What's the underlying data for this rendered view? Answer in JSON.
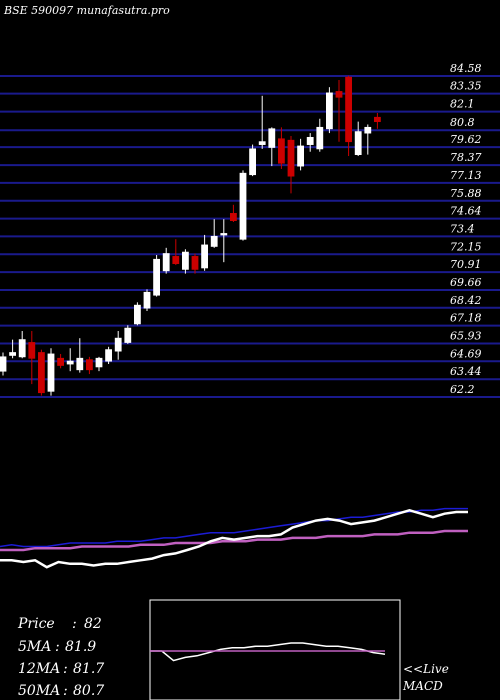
{
  "title": "BSE 590097 munafasutra.pro",
  "colors": {
    "background": "#000000",
    "grid": "#1a1a8c",
    "up_candle": "#ffffff",
    "down_candle": "#cc0000",
    "ma_blue": "#1c1cd6",
    "ma_pink": "#c060c0",
    "price_white": "#ffffff",
    "macd_signal": "#c060c0",
    "text": "#ffffff"
  },
  "chart_data": [
    {
      "type": "candlestick",
      "y_ticks": [
        84.58,
        83.35,
        82.1,
        80.8,
        79.62,
        78.37,
        77.13,
        75.88,
        74.64,
        73.4,
        72.15,
        70.91,
        69.66,
        68.42,
        67.18,
        65.93,
        64.69,
        63.44,
        62.2
      ],
      "ylim": [
        61.6,
        85.2
      ],
      "candles": [
        {
          "o": 64.0,
          "h": 65.3,
          "l": 63.7,
          "c": 65.0
        },
        {
          "o": 65.1,
          "h": 66.2,
          "l": 64.9,
          "c": 65.3
        },
        {
          "o": 65.0,
          "h": 66.8,
          "l": 64.9,
          "c": 66.2
        },
        {
          "o": 66.0,
          "h": 66.8,
          "l": 63.1,
          "c": 64.9
        },
        {
          "o": 65.3,
          "h": 65.5,
          "l": 62.3,
          "c": 62.5
        },
        {
          "o": 62.6,
          "h": 65.6,
          "l": 62.3,
          "c": 65.2
        },
        {
          "o": 64.9,
          "h": 65.2,
          "l": 64.2,
          "c": 64.4
        },
        {
          "o": 64.5,
          "h": 65.6,
          "l": 64.0,
          "c": 64.7
        },
        {
          "o": 64.1,
          "h": 66.3,
          "l": 63.9,
          "c": 64.9
        },
        {
          "o": 64.8,
          "h": 65.0,
          "l": 63.8,
          "c": 64.1
        },
        {
          "o": 64.3,
          "h": 65.0,
          "l": 64.0,
          "c": 64.9
        },
        {
          "o": 64.7,
          "h": 65.7,
          "l": 64.5,
          "c": 65.5
        },
        {
          "o": 65.4,
          "h": 66.8,
          "l": 64.8,
          "c": 66.3
        },
        {
          "o": 66.0,
          "h": 67.2,
          "l": 65.9,
          "c": 67.0
        },
        {
          "o": 67.3,
          "h": 68.8,
          "l": 67.2,
          "c": 68.6
        },
        {
          "o": 68.4,
          "h": 69.7,
          "l": 68.2,
          "c": 69.5
        },
        {
          "o": 69.3,
          "h": 72.1,
          "l": 69.2,
          "c": 71.8
        },
        {
          "o": 71.0,
          "h": 72.6,
          "l": 70.8,
          "c": 72.2
        },
        {
          "o": 72.0,
          "h": 73.2,
          "l": 71.4,
          "c": 71.5
        },
        {
          "o": 71.1,
          "h": 72.5,
          "l": 70.8,
          "c": 72.3
        },
        {
          "o": 72.0,
          "h": 72.2,
          "l": 70.8,
          "c": 71.1
        },
        {
          "o": 71.2,
          "h": 73.5,
          "l": 71.0,
          "c": 72.8
        },
        {
          "o": 72.7,
          "h": 74.6,
          "l": 72.6,
          "c": 73.4
        },
        {
          "o": 73.5,
          "h": 74.6,
          "l": 71.6,
          "c": 73.6
        },
        {
          "o": 75.0,
          "h": 75.6,
          "l": 74.4,
          "c": 74.5
        },
        {
          "o": 73.2,
          "h": 78.0,
          "l": 73.1,
          "c": 77.8
        },
        {
          "o": 77.7,
          "h": 79.8,
          "l": 77.6,
          "c": 79.5
        },
        {
          "o": 79.8,
          "h": 83.2,
          "l": 79.5,
          "c": 80.0
        },
        {
          "o": 79.6,
          "h": 81.0,
          "l": 78.3,
          "c": 80.9
        },
        {
          "o": 80.2,
          "h": 81.0,
          "l": 78.1,
          "c": 78.5
        },
        {
          "o": 80.1,
          "h": 80.4,
          "l": 76.4,
          "c": 77.6
        },
        {
          "o": 78.3,
          "h": 80.2,
          "l": 78.0,
          "c": 79.7
        },
        {
          "o": 79.8,
          "h": 80.6,
          "l": 79.3,
          "c": 80.3
        },
        {
          "o": 79.5,
          "h": 81.6,
          "l": 79.3,
          "c": 81.0
        },
        {
          "o": 80.9,
          "h": 83.8,
          "l": 80.6,
          "c": 83.4
        },
        {
          "o": 83.5,
          "h": 84.3,
          "l": 80.0,
          "c": 83.1
        },
        {
          "o": 84.5,
          "h": 84.6,
          "l": 79.0,
          "c": 80.0
        },
        {
          "o": 79.1,
          "h": 81.4,
          "l": 79.0,
          "c": 80.7
        },
        {
          "o": 80.6,
          "h": 81.2,
          "l": 79.1,
          "c": 81.0
        },
        {
          "o": 81.7,
          "h": 82.0,
          "l": 80.9,
          "c": 81.4
        }
      ]
    },
    {
      "type": "line",
      "series": [
        {
          "values": [
            60,
            61,
            60,
            60,
            60,
            61,
            62,
            62,
            62,
            62,
            63,
            63,
            63,
            64,
            65,
            65,
            66,
            67,
            68,
            68,
            68,
            69,
            70,
            71,
            72,
            73,
            74,
            75,
            75,
            76,
            77,
            77,
            78,
            79,
            80,
            80,
            81,
            81,
            82,
            82,
            82
          ]
        },
        {
          "values": [
            58,
            58,
            58,
            59,
            59,
            59,
            59,
            60,
            60,
            60,
            60,
            60,
            61,
            61,
            61,
            62,
            62,
            62,
            62,
            63,
            63,
            63,
            64,
            64,
            64,
            65,
            65,
            65,
            66,
            66,
            66,
            66,
            67,
            67,
            67,
            68,
            68,
            68,
            69,
            69,
            69
          ]
        },
        {
          "values": [
            52,
            52,
            51,
            52,
            48,
            51,
            50,
            50,
            49,
            50,
            50,
            51,
            52,
            53,
            55,
            56,
            58,
            60,
            63,
            65,
            64,
            65,
            66,
            66,
            67,
            71,
            73,
            75,
            76,
            75,
            73,
            74,
            75,
            77,
            79,
            81,
            79,
            77,
            79,
            80,
            80
          ]
        }
      ]
    },
    {
      "type": "line",
      "series": [
        {
          "values": [
            0.0,
            0.0,
            -0.6,
            -0.4,
            -0.3,
            -0.1,
            0.1,
            0.2,
            0.2,
            0.3,
            0.3,
            0.4,
            0.5,
            0.5,
            0.4,
            0.3,
            0.3,
            0.2,
            0.1,
            -0.1,
            -0.2
          ]
        },
        {
          "values": [
            0.0,
            0.0,
            0.0,
            0.0,
            0.0,
            0.0,
            0.0,
            0.0,
            0.0,
            0.0,
            0.0,
            0.0,
            0.0,
            0.0,
            0.0,
            0.0,
            0.0,
            0.0,
            0.0,
            0.0,
            0.0
          ]
        }
      ]
    }
  ],
  "stats": [
    {
      "label": "Price",
      "sep": ":",
      "value": "82"
    },
    {
      "label": "5MA",
      "sep": ":",
      "value": "81.9"
    },
    {
      "label": "12MA",
      "sep": ":",
      "value": "81.7"
    },
    {
      "label": "50MA",
      "sep": ":",
      "value": "80.7"
    }
  ],
  "macd_label_1": "<<Live",
  "macd_label_2": "MACD"
}
